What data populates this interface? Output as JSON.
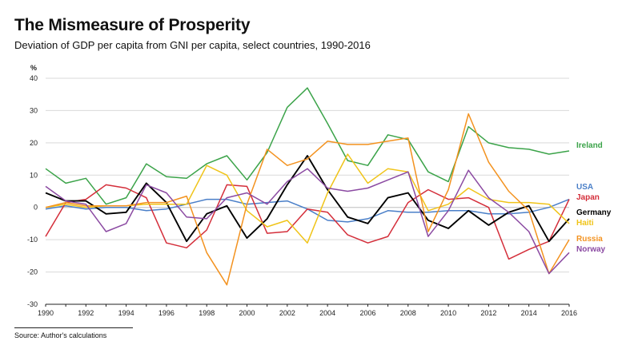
{
  "title": "The Mismeasure of Prosperity",
  "subtitle": "Deviation of GDP per capita from GNI per capita, select countries, 1990-2016",
  "source": "Source: Author's calculations",
  "chart_data": {
    "type": "line",
    "y_unit": "%",
    "ylim": [
      -30,
      40
    ],
    "y_ticks": [
      "40",
      "30",
      "20",
      "10",
      "0",
      "-10",
      "-20",
      "-30"
    ],
    "xlim": [
      1990,
      2016
    ],
    "x_ticks": [
      "1990",
      "1992",
      "1994",
      "1996",
      "1998",
      "2000",
      "2002",
      "2004",
      "2006",
      "2008",
      "2010",
      "2012",
      "2014",
      "2016"
    ],
    "grid": true,
    "legend_placement": "right, at line ends",
    "x": [
      1990,
      1991,
      1992,
      1993,
      1994,
      1995,
      1996,
      1997,
      1998,
      1999,
      2000,
      2001,
      2002,
      2003,
      2004,
      2005,
      2006,
      2007,
      2008,
      2009,
      2010,
      2011,
      2012,
      2013,
      2014,
      2015,
      2016
    ],
    "series": [
      {
        "name": "Ireland",
        "color": "#3ba349",
        "values": [
          12,
          7.5,
          9,
          1,
          3,
          13.5,
          9.5,
          9,
          13.5,
          16,
          8.5,
          17,
          31,
          37,
          26,
          14.5,
          13,
          22.5,
          21,
          11,
          8,
          25,
          20,
          18.5,
          18,
          16.5,
          17.5
        ]
      },
      {
        "name": "USA",
        "color": "#4a7fc8",
        "values": [
          -0.5,
          0.5,
          -0.5,
          0,
          0,
          -1,
          -0.5,
          1,
          2.5,
          2.5,
          1,
          1.5,
          2,
          -0.5,
          -4,
          -4.5,
          -3.5,
          -1,
          -1.5,
          -1.5,
          -1,
          -1,
          -2,
          -2,
          -1.5,
          0,
          2.5
        ]
      },
      {
        "name": "Japan",
        "color": "#d42e3a",
        "values": [
          -9,
          1.5,
          2.5,
          7,
          6,
          3,
          -11,
          -12.5,
          -7,
          7,
          6.5,
          -8,
          -7.5,
          -0.5,
          -1.5,
          -8.5,
          -11,
          -9,
          1.5,
          5.5,
          2.5,
          3,
          0,
          -16,
          -13,
          -10.5,
          2.5
        ]
      },
      {
        "name": "Germany",
        "color": "#000000",
        "values": [
          4.5,
          2,
          2,
          -2,
          -1.5,
          7.5,
          1.5,
          -10.5,
          -2,
          0.5,
          -9.5,
          -3.5,
          7,
          16,
          5.5,
          -3,
          -5,
          3,
          4.5,
          -4,
          -6.5,
          -1,
          -5.5,
          -1.5,
          0.5,
          -10.5,
          -3.5
        ]
      },
      {
        "name": "Haiti",
        "color": "#f0c419",
        "values": [
          0,
          1,
          0,
          0.5,
          0.5,
          1,
          1,
          1,
          13,
          10,
          -1,
          -6,
          -4,
          -11,
          4.5,
          16.5,
          7.5,
          12,
          11,
          -1,
          1,
          6,
          2.5,
          1.5,
          1.5,
          1,
          -5
        ]
      },
      {
        "name": "Russia",
        "color": "#f3921f",
        "values": [
          0,
          1.5,
          0.5,
          0.5,
          0.5,
          1.5,
          1.5,
          3.5,
          -14,
          -24,
          1,
          18,
          13,
          15,
          20.5,
          19.5,
          19.5,
          20.5,
          21.5,
          -7.5,
          5.5,
          29,
          14,
          5,
          -1,
          -20.5,
          -10
        ]
      },
      {
        "name": "Norway",
        "color": "#8b4aa2",
        "values": [
          6.5,
          2,
          1,
          -7.5,
          -5,
          7,
          4.5,
          -3,
          -3.5,
          3,
          4.5,
          1,
          8,
          12,
          6,
          5,
          6,
          8.5,
          11,
          -9,
          -1,
          11.5,
          3,
          -1.5,
          -7.5,
          -20.5,
          -14
        ]
      }
    ]
  }
}
